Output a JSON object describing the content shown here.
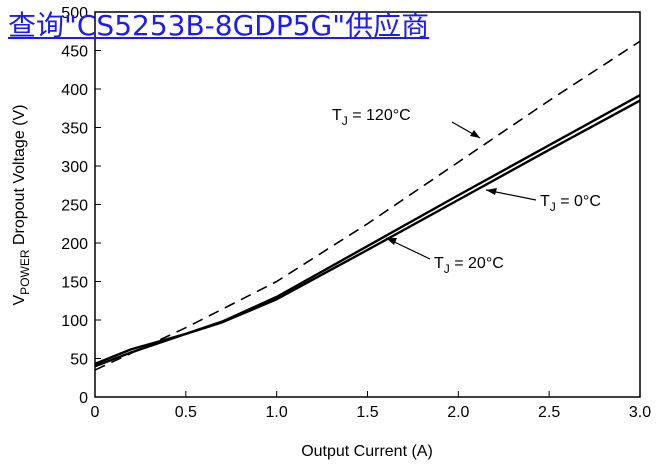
{
  "overlay": {
    "link_text": "查询\"CS5253B-8GDP5G\"供应商"
  },
  "chart_data": {
    "type": "line",
    "xlabel": "Output Current (A)",
    "ylabel": {
      "prefix": "V",
      "sub": "POWER",
      "rest": " Dropout Voltage (V)"
    },
    "xlim": [
      0,
      3.0
    ],
    "ylim": [
      0,
      500
    ],
    "x_ticks": [
      "0",
      "0.5",
      "1.0",
      "1.5",
      "2.0",
      "2.5",
      "3.0"
    ],
    "y_ticks": [
      "0",
      "50",
      "100",
      "150",
      "200",
      "250",
      "300",
      "350",
      "400",
      "450",
      "500"
    ],
    "grid": false,
    "series": [
      {
        "label": {
          "prefix": "T",
          "sub": "J",
          "rest": " = 120°C"
        },
        "style": "dashed",
        "points": [
          [
            0,
            35
          ],
          [
            0.5,
            90
          ],
          [
            1.0,
            150
          ],
          [
            1.5,
            225
          ],
          [
            2.0,
            305
          ],
          [
            2.5,
            385
          ],
          [
            3.0,
            462
          ]
        ]
      },
      {
        "label": {
          "prefix": "T",
          "sub": "J",
          "rest": " = 0°C"
        },
        "style": "solid",
        "points": [
          [
            0,
            43
          ],
          [
            0.2,
            62
          ],
          [
            0.5,
            82
          ],
          [
            0.7,
            98
          ],
          [
            1.0,
            130
          ],
          [
            1.5,
            196
          ],
          [
            2.0,
            262
          ],
          [
            2.5,
            327
          ],
          [
            3.0,
            392
          ]
        ]
      },
      {
        "label": {
          "prefix": "T",
          "sub": "J",
          "rest": " = 20°C"
        },
        "style": "solid",
        "points": [
          [
            0,
            40
          ],
          [
            0.2,
            58
          ],
          [
            0.5,
            82
          ],
          [
            0.7,
            97
          ],
          [
            1.0,
            127
          ],
          [
            1.5,
            191
          ],
          [
            2.0,
            256
          ],
          [
            2.5,
            321
          ],
          [
            3.0,
            385
          ]
        ]
      }
    ]
  }
}
